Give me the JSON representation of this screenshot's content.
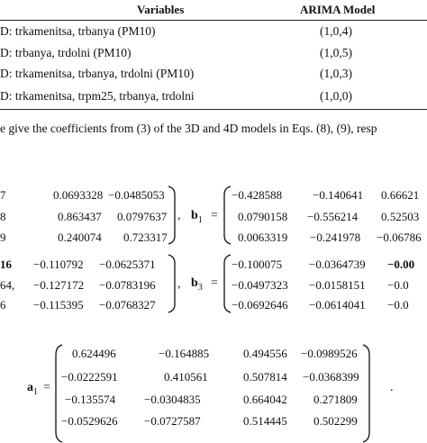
{
  "table": {
    "columns": [
      "Variables",
      "ARIMA Model"
    ],
    "rows": [
      {
        "model": "D: trkamenitsa, trbanya (PM10)",
        "arima": "(1,0,4)"
      },
      {
        "model": "D: trbanya, trdolni (PM10)",
        "arima": "(1,0,5)"
      },
      {
        "model": "D: trkamenitsa, trbanya, trdolni (PM10)",
        "arima": "(1,0,3)"
      },
      {
        "model": "D: trkamenitsa, trpm25, trbanya, trdolni",
        "arima": "(1,0,0)"
      }
    ]
  },
  "paragraph": "e give the coefficients from (3) of the 3D and 4D models in Eqs. (8), (9), resp",
  "block1": {
    "left_rows": [
      [
        "7",
        "0.0693328",
        "−0.0485053"
      ],
      [
        "8",
        "0.863437",
        "0.0797637"
      ],
      [
        "9",
        "0.240074",
        "0.723317"
      ]
    ],
    "comma": ",",
    "label_bold": "b",
    "label_sub": "1",
    "equals": "=",
    "right_rows": [
      [
        "−0.428588",
        "−0.140641",
        "0.66621"
      ],
      [
        "0.0790158",
        "−0.556214",
        "0.52503"
      ],
      [
        "0.0063319",
        "−0.241978",
        "−0.06786"
      ]
    ]
  },
  "block2": {
    "left_rows": [
      [
        "16",
        "−0.110792",
        "−0.0625371"
      ],
      [
        "64,",
        "−0.127172",
        "−0.0783196"
      ],
      [
        "6",
        "−0.115395",
        "−0.0768327"
      ]
    ],
    "comma": ",",
    "label_bold": "b",
    "label_sub": "3",
    "equals": "=",
    "right_rows": [
      [
        "−0.100075",
        "−0.0364739",
        "−0.00"
      ],
      [
        "−0.0497323",
        "−0.0158151",
        "−0.0"
      ],
      [
        "−0.0692646",
        "−0.0614041",
        "−0.0"
      ]
    ]
  },
  "block3": {
    "label_bold": "a",
    "label_sub": "1",
    "equals": "=",
    "rows": [
      [
        "0.624496",
        "−0.164885",
        "0.494556",
        "−0.0989526"
      ],
      [
        "−0.0222591",
        "0.410561",
        "0.507814",
        "−0.0368399"
      ],
      [
        "−0.135574",
        "−0.0304835",
        "0.664042",
        "0.271809"
      ],
      [
        "−0.0529626",
        "−0.0727587",
        "0.514445",
        "0.502299"
      ]
    ],
    "trailing": "."
  }
}
